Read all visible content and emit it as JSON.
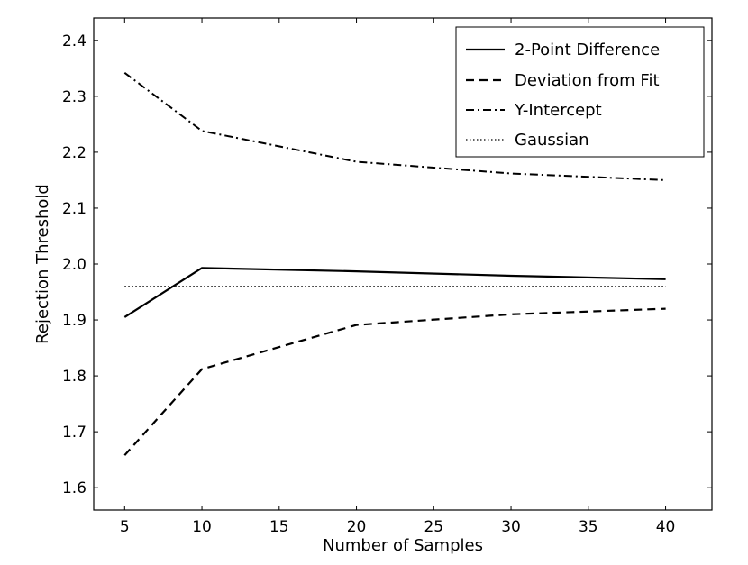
{
  "chart_data": {
    "type": "line",
    "title": "",
    "xlabel": "Number of Samples",
    "ylabel": "Rejection Threshold",
    "xlim": [
      3,
      43
    ],
    "ylim": [
      1.56,
      2.44
    ],
    "xticks": [
      5,
      10,
      15,
      20,
      25,
      30,
      35,
      40
    ],
    "yticks": [
      1.6,
      1.7,
      1.8,
      1.9,
      2.0,
      2.1,
      2.2,
      2.3,
      2.4
    ],
    "ytick_labels": [
      "1.6",
      "1.7",
      "1.8",
      "1.9",
      "2.0",
      "2.1",
      "2.2",
      "2.3",
      "2.4"
    ],
    "legend_position": "top-right",
    "series": [
      {
        "name": "2-Point Difference",
        "style": "solid",
        "x": [
          5,
          10,
          20,
          30,
          40
        ],
        "values": [
          1.905,
          1.993,
          1.987,
          1.979,
          1.973
        ]
      },
      {
        "name": "Deviation from Fit",
        "style": "dashed",
        "x": [
          5,
          10,
          20,
          30,
          40
        ],
        "values": [
          1.658,
          1.812,
          1.891,
          1.91,
          1.92
        ]
      },
      {
        "name": "Y-Intercept",
        "style": "dashdot",
        "x": [
          5,
          10,
          20,
          30,
          40
        ],
        "values": [
          2.342,
          2.238,
          2.183,
          2.162,
          2.15
        ]
      },
      {
        "name": "Gaussian",
        "style": "dotted",
        "x": [
          5,
          40
        ],
        "values": [
          1.96,
          1.96
        ]
      }
    ]
  }
}
